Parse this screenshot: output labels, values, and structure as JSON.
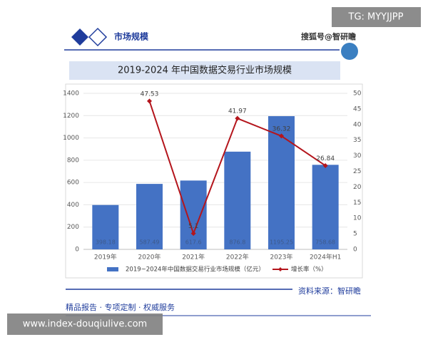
{
  "header": {
    "section": "市场规模",
    "brand": "搜狐号@智研瞻",
    "watermark": "TG: MYYJJPP"
  },
  "chart_data": {
    "type": "bar",
    "title": "2019-2024 年中国数据交易行业市场规模",
    "categories": [
      "2019年",
      "2020年",
      "2021年",
      "2022年",
      "2023年",
      "2024年H1"
    ],
    "series": [
      {
        "name": "2019~2024年中国数据交易行业市场规模（亿元）",
        "color": "#4472c4",
        "values": [
          398.18,
          587.49,
          617.6,
          876.8,
          1195.25,
          758.68
        ]
      },
      {
        "name": "增长率（%）",
        "type": "line",
        "axis": "y2",
        "color": "#b4151c",
        "values": [
          null,
          47.53,
          5.1,
          41.97,
          36.32,
          26.84
        ]
      }
    ],
    "ylim": [
      0,
      1400
    ],
    "yticks": [
      0,
      200,
      400,
      600,
      800,
      1000,
      1200,
      1400
    ],
    "y2lim": [
      0,
      50
    ],
    "y2ticks": [
      0,
      5,
      10,
      15,
      20,
      25,
      30,
      35,
      40,
      45,
      50
    ]
  },
  "footer": {
    "source": "资料来源：智研瞻",
    "tagline": "精品报告 · 专项定制 · 权威服务",
    "watermark": "www.index-douqiulive.com"
  }
}
